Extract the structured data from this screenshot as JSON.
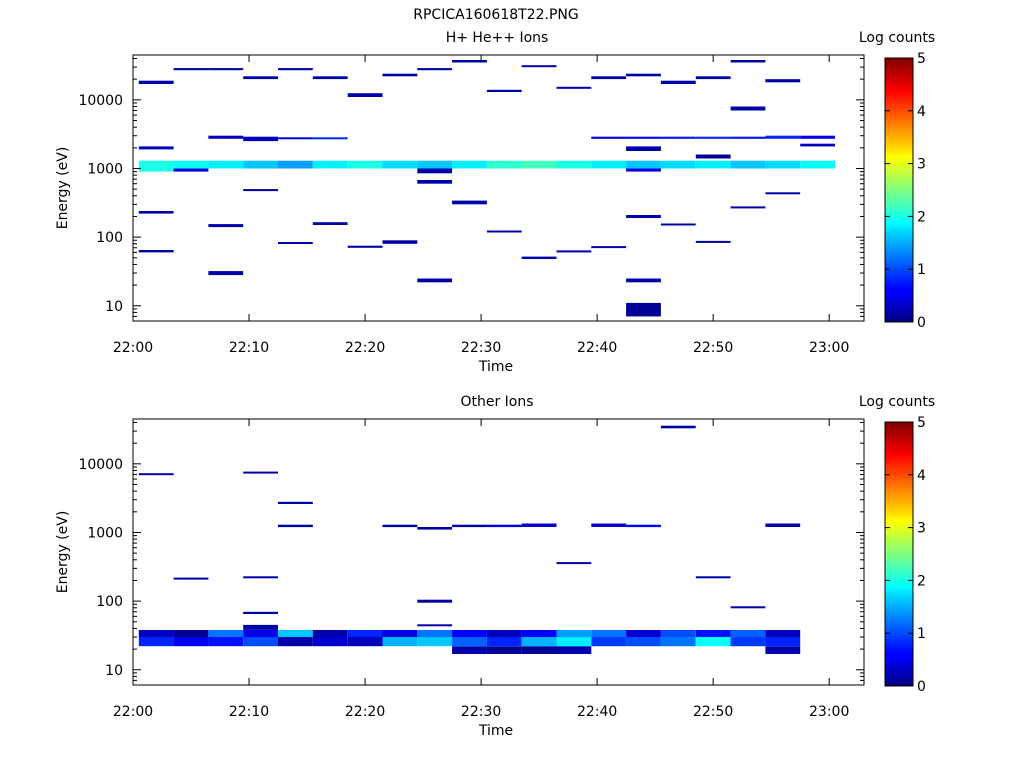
{
  "title": "RPCICA160618T22.PNG",
  "colorbar": {
    "label": "Log counts",
    "ticks": [
      "0",
      "1",
      "2",
      "3",
      "4",
      "5"
    ],
    "range": [
      0,
      5
    ],
    "colormap": "jet"
  },
  "chart_data": [
    {
      "type": "heatmap",
      "title": "H+ He++ Ions",
      "xlabel": "Time",
      "ylabel": "Energy (eV)",
      "x_scale": "time",
      "x_ticks": [
        "22:00",
        "22:10",
        "22:20",
        "22:30",
        "22:40",
        "22:50",
        "23:00"
      ],
      "xlim": [
        "22:00",
        "23:03"
      ],
      "y_scale": "log",
      "y_ticks": [
        "10",
        "100",
        "1000",
        "10000"
      ],
      "ylim": [
        6,
        45000
      ],
      "time_bins": [
        "22:02",
        "22:05",
        "22:08",
        "22:11",
        "22:14",
        "22:17",
        "22:20",
        "22:23",
        "22:26",
        "22:29",
        "22:32",
        "22:35",
        "22:38",
        "22:41",
        "22:44",
        "22:47",
        "22:50",
        "22:53",
        "22:56",
        "22:59"
      ],
      "cells": [
        [
          0,
          1000,
          1300,
          2.0
        ],
        [
          1,
          1000,
          1300,
          1.9
        ],
        [
          2,
          1000,
          1300,
          1.8
        ],
        [
          3,
          1000,
          1300,
          1.6
        ],
        [
          4,
          1000,
          1300,
          1.4
        ],
        [
          5,
          1000,
          1300,
          1.8
        ],
        [
          6,
          1000,
          1300,
          2.0
        ],
        [
          7,
          1000,
          1300,
          1.7
        ],
        [
          8,
          1000,
          1300,
          1.6
        ],
        [
          9,
          1000,
          1300,
          1.8
        ],
        [
          10,
          1000,
          1300,
          2.1
        ],
        [
          11,
          1000,
          1300,
          2.2
        ],
        [
          12,
          1000,
          1300,
          2.0
        ],
        [
          13,
          1000,
          1300,
          1.8
        ],
        [
          14,
          1000,
          1300,
          1.6
        ],
        [
          15,
          1000,
          1300,
          1.7
        ],
        [
          16,
          1000,
          1300,
          1.8
        ],
        [
          17,
          1000,
          1300,
          1.6
        ],
        [
          18,
          1000,
          1300,
          1.7
        ],
        [
          19,
          1000,
          1300,
          1.9
        ],
        [
          0,
          900,
          1000,
          2.0
        ],
        [
          1,
          900,
          1000,
          0.4
        ],
        [
          8,
          850,
          1000,
          0.2
        ],
        [
          14,
          900,
          1000,
          0.5
        ],
        [
          0,
          1900,
          2100,
          0.3
        ],
        [
          2,
          2700,
          3000,
          0.3
        ],
        [
          3,
          2500,
          2900,
          0.3
        ],
        [
          4,
          2700,
          2850,
          0.5
        ],
        [
          5,
          2700,
          2850,
          0.8
        ],
        [
          13,
          2700,
          2900,
          0.4
        ],
        [
          14,
          2700,
          2900,
          0.6
        ],
        [
          15,
          2700,
          2900,
          0.7
        ],
        [
          16,
          2700,
          2900,
          0.8
        ],
        [
          17,
          2700,
          2900,
          0.7
        ],
        [
          18,
          2700,
          3000,
          0.8
        ],
        [
          19,
          2700,
          3000,
          0.6
        ],
        [
          14,
          1800,
          2100,
          0.2
        ],
        [
          19,
          2100,
          2300,
          0.3
        ],
        [
          16,
          1400,
          1600,
          0.1
        ],
        [
          0,
          17000,
          19000,
          0.2
        ],
        [
          1,
          27000,
          29000,
          0.2
        ],
        [
          2,
          27000,
          29000,
          0.2
        ],
        [
          3,
          20000,
          22000,
          0.2
        ],
        [
          4,
          27000,
          29000,
          0.2
        ],
        [
          5,
          20000,
          22000,
          0.2
        ],
        [
          6,
          11000,
          12500,
          0.2
        ],
        [
          7,
          22000,
          24000,
          0.2
        ],
        [
          8,
          27000,
          29000,
          0.2
        ],
        [
          9,
          35000,
          38000,
          0.2
        ],
        [
          10,
          13000,
          14000,
          0.2
        ],
        [
          11,
          30000,
          32000,
          0.2
        ],
        [
          12,
          14500,
          15500,
          0.2
        ],
        [
          13,
          20000,
          22000,
          0.2
        ],
        [
          14,
          22000,
          24000,
          0.2
        ],
        [
          15,
          17000,
          19000,
          0.2
        ],
        [
          16,
          20000,
          22000,
          0.2
        ],
        [
          17,
          35000,
          38000,
          0.2
        ],
        [
          18,
          18000,
          20000,
          0.2
        ],
        [
          0,
          220,
          240,
          0.2
        ],
        [
          0,
          60,
          65,
          0.2
        ],
        [
          2,
          28,
          32,
          0.2
        ],
        [
          2,
          140,
          155,
          0.2
        ],
        [
          3,
          470,
          500,
          0.2
        ],
        [
          4,
          80,
          85,
          0.2
        ],
        [
          5,
          150,
          165,
          0.2
        ],
        [
          6,
          70,
          75,
          0.2
        ],
        [
          7,
          80,
          90,
          0.2
        ],
        [
          8,
          22,
          25,
          0.2
        ],
        [
          8,
          600,
          680,
          0.2
        ],
        [
          9,
          300,
          340,
          0.2
        ],
        [
          10,
          120,
          125,
          0.2
        ],
        [
          11,
          48,
          52,
          0.2
        ],
        [
          12,
          60,
          64,
          0.2
        ],
        [
          13,
          70,
          74,
          0.2
        ],
        [
          14,
          7,
          11,
          0.1
        ],
        [
          14,
          22,
          25,
          0.2
        ],
        [
          14,
          190,
          210,
          0.2
        ],
        [
          15,
          150,
          158,
          0.2
        ],
        [
          16,
          84,
          88,
          0.2
        ],
        [
          17,
          270,
          280,
          0.2
        ],
        [
          18,
          430,
          450,
          0.2
        ],
        [
          17,
          7000,
          8000,
          0.2
        ]
      ]
    },
    {
      "type": "heatmap",
      "title": "Other Ions",
      "xlabel": "Time",
      "ylabel": "Energy (eV)",
      "x_scale": "time",
      "x_ticks": [
        "22:00",
        "22:10",
        "22:20",
        "22:30",
        "22:40",
        "22:50",
        "23:00"
      ],
      "xlim": [
        "22:00",
        "23:03"
      ],
      "y_scale": "log",
      "y_ticks": [
        "10",
        "100",
        "1000",
        "10000"
      ],
      "ylim": [
        6,
        45000
      ],
      "time_bins": [
        "22:02",
        "22:05",
        "22:08",
        "22:11",
        "22:14",
        "22:17",
        "22:20",
        "22:23",
        "22:26",
        "22:29",
        "22:32",
        "22:35",
        "22:38",
        "22:41",
        "22:44",
        "22:47",
        "22:50",
        "22:53",
        "22:56",
        "22:59"
      ],
      "cells": [
        [
          0,
          22,
          30,
          0.8
        ],
        [
          0,
          30,
          38,
          0.3
        ],
        [
          1,
          22,
          30,
          0.6
        ],
        [
          1,
          30,
          38,
          0.1
        ],
        [
          2,
          22,
          30,
          0.7
        ],
        [
          2,
          30,
          38,
          1.2
        ],
        [
          3,
          22,
          30,
          1.0
        ],
        [
          3,
          30,
          38,
          0.5
        ],
        [
          3,
          38,
          45,
          0.2
        ],
        [
          4,
          22,
          30,
          0.2
        ],
        [
          4,
          30,
          38,
          1.6
        ],
        [
          5,
          22,
          30,
          0.4
        ],
        [
          5,
          30,
          38,
          0.2
        ],
        [
          6,
          22,
          30,
          0.3
        ],
        [
          6,
          30,
          38,
          0.8
        ],
        [
          7,
          22,
          30,
          1.5
        ],
        [
          7,
          30,
          38,
          0.5
        ],
        [
          8,
          22,
          30,
          1.6
        ],
        [
          8,
          30,
          38,
          1.2
        ],
        [
          9,
          22,
          30,
          1.1
        ],
        [
          9,
          30,
          38,
          0.6
        ],
        [
          9,
          17,
          22,
          0.2
        ],
        [
          10,
          22,
          30,
          0.8
        ],
        [
          10,
          30,
          38,
          0.3
        ],
        [
          10,
          17,
          22,
          0.1
        ],
        [
          11,
          22,
          30,
          1.5
        ],
        [
          11,
          30,
          38,
          0.6
        ],
        [
          11,
          17,
          22,
          0.1
        ],
        [
          12,
          22,
          30,
          1.8
        ],
        [
          12,
          30,
          38,
          1.4
        ],
        [
          12,
          17,
          22,
          0.2
        ],
        [
          13,
          22,
          30,
          0.9
        ],
        [
          13,
          30,
          38,
          1.2
        ],
        [
          14,
          22,
          30,
          1.0
        ],
        [
          14,
          30,
          38,
          0.4
        ],
        [
          15,
          22,
          30,
          1.2
        ],
        [
          15,
          30,
          38,
          1.0
        ],
        [
          16,
          22,
          30,
          1.9
        ],
        [
          16,
          30,
          38,
          0.7
        ],
        [
          17,
          22,
          30,
          0.9
        ],
        [
          17,
          30,
          38,
          1.1
        ],
        [
          18,
          22,
          30,
          0.8
        ],
        [
          18,
          30,
          38,
          0.3
        ],
        [
          18,
          17,
          22,
          0.2
        ],
        [
          0,
          6900,
          7300,
          0.2
        ],
        [
          1,
          210,
          220,
          0.2
        ],
        [
          3,
          7200,
          7700,
          0.2
        ],
        [
          3,
          220,
          230,
          0.2
        ],
        [
          3,
          65,
          70,
          0.2
        ],
        [
          4,
          2600,
          2800,
          0.2
        ],
        [
          4,
          1200,
          1300,
          0.2
        ],
        [
          7,
          1200,
          1300,
          0.2
        ],
        [
          8,
          1100,
          1200,
          0.2
        ],
        [
          8,
          95,
          105,
          0.2
        ],
        [
          8,
          43,
          46,
          0.2
        ],
        [
          9,
          1200,
          1300,
          0.2
        ],
        [
          10,
          1200,
          1300,
          0.5
        ],
        [
          11,
          1200,
          1350,
          0.4
        ],
        [
          12,
          350,
          370,
          0.2
        ],
        [
          13,
          1200,
          1350,
          0.4
        ],
        [
          14,
          1200,
          1300,
          0.6
        ],
        [
          15,
          33000,
          36000,
          0.2
        ],
        [
          16,
          220,
          230,
          0.2
        ],
        [
          17,
          80,
          84,
          0.2
        ],
        [
          18,
          1200,
          1350,
          0.2
        ]
      ]
    }
  ]
}
